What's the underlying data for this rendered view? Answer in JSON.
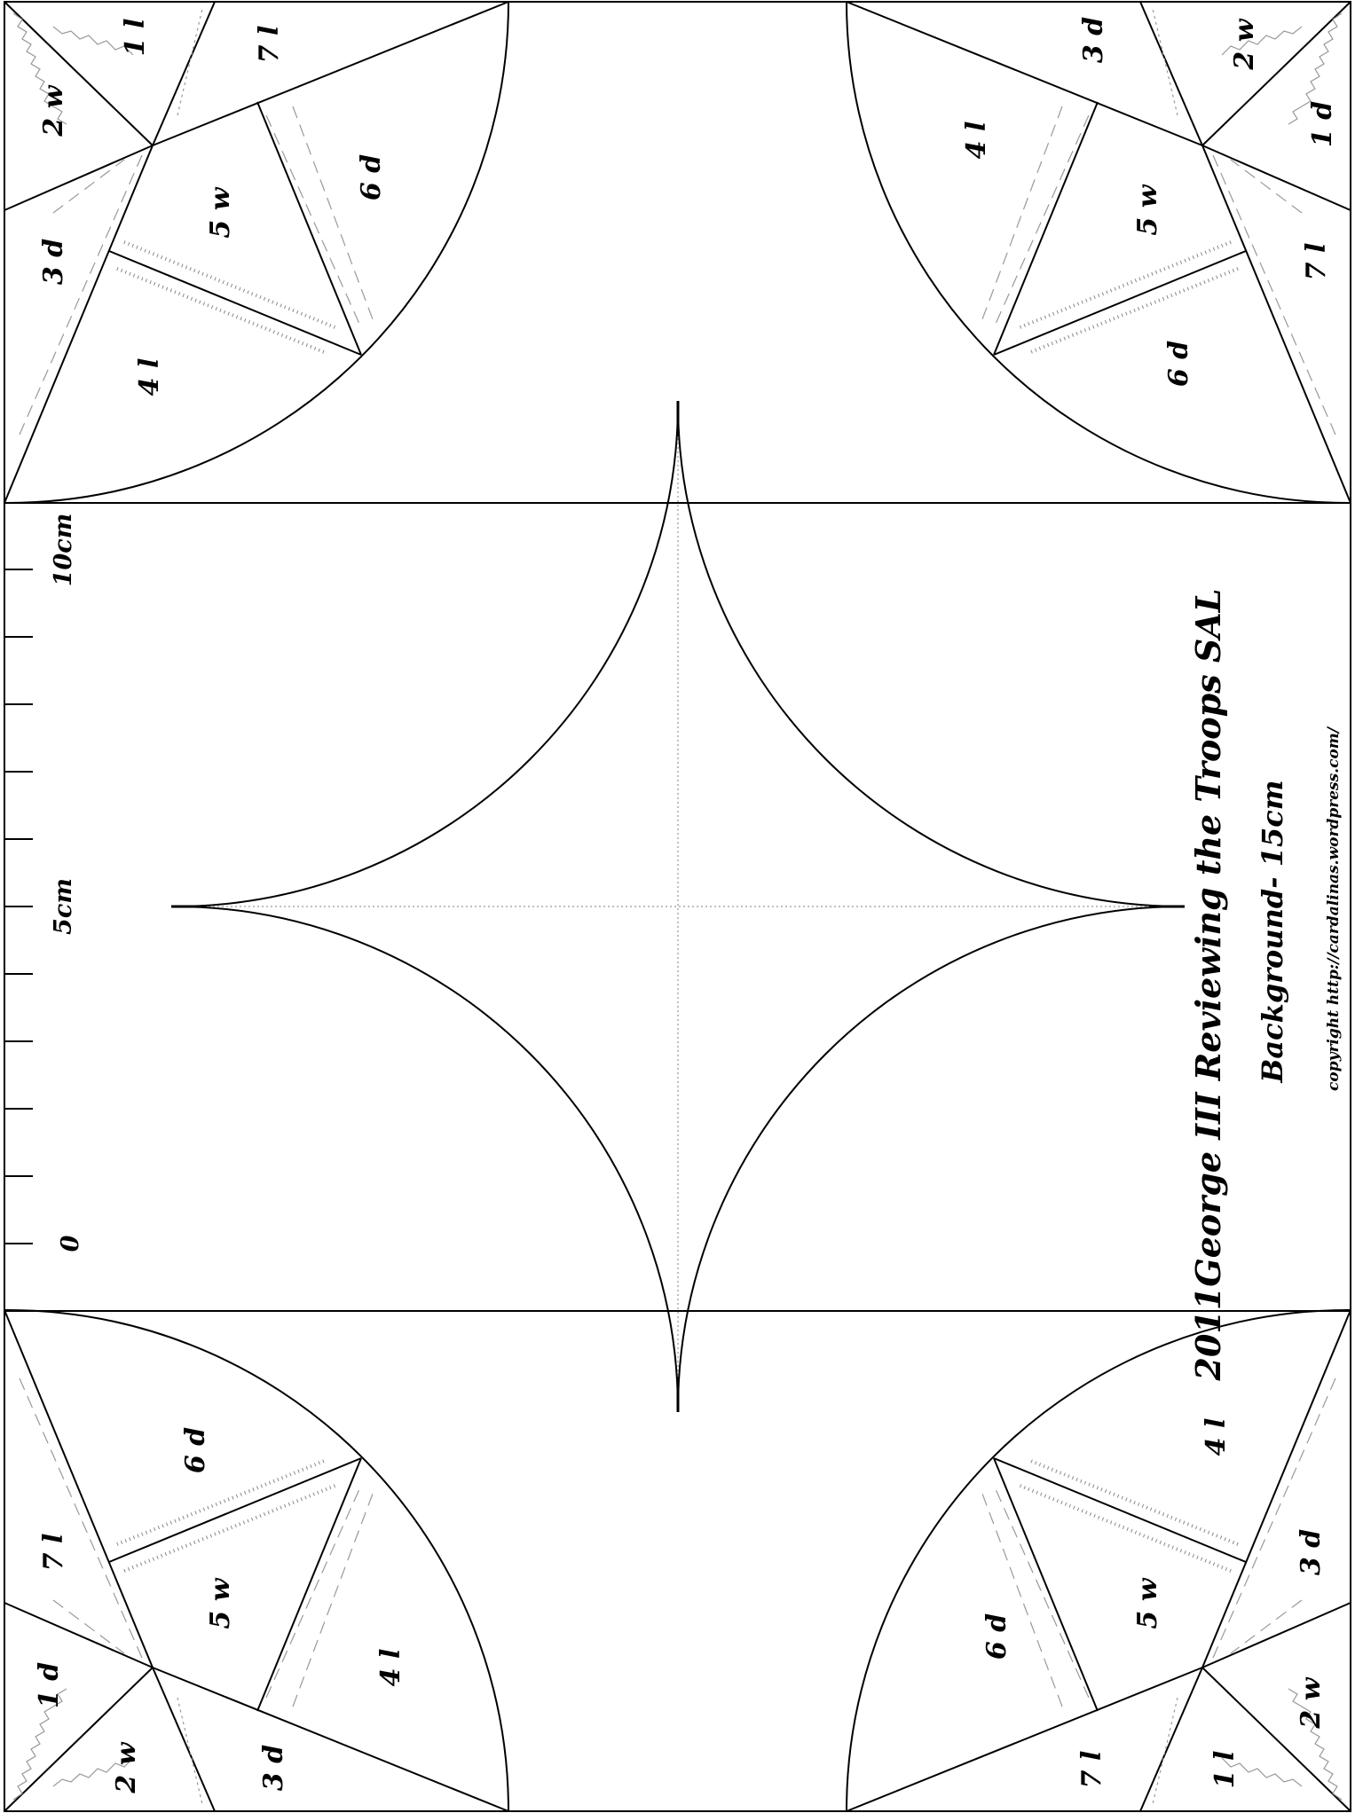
{
  "title": {
    "main": "2011George III Reviewing the Troops SAL",
    "subtitle": "Background- 15cm",
    "copyright": "copyright http://cardalinas.wordpress.com/"
  },
  "ruler": {
    "labels": [
      "0",
      "5cm",
      "10cm"
    ]
  },
  "corners": {
    "top_left": [
      "1 l",
      "2 w",
      "3 d",
      "4 l",
      "5 w",
      "6 d",
      "7 l"
    ],
    "top_right": [
      "1 d",
      "2 w",
      "3 d",
      "4 l",
      "5 w",
      "6 d",
      "7 l"
    ],
    "bottom_left": [
      "1 d",
      "2 w",
      "3 d",
      "4 l",
      "5 w",
      "6 d",
      "7 l"
    ],
    "bottom_right": [
      "1 l",
      "2 w",
      "3 d",
      "4 l",
      "5 w",
      "6 d",
      "7 l"
    ]
  },
  "colors": {
    "line": "#000000",
    "guide": "#999999",
    "stitch": "#888888"
  }
}
